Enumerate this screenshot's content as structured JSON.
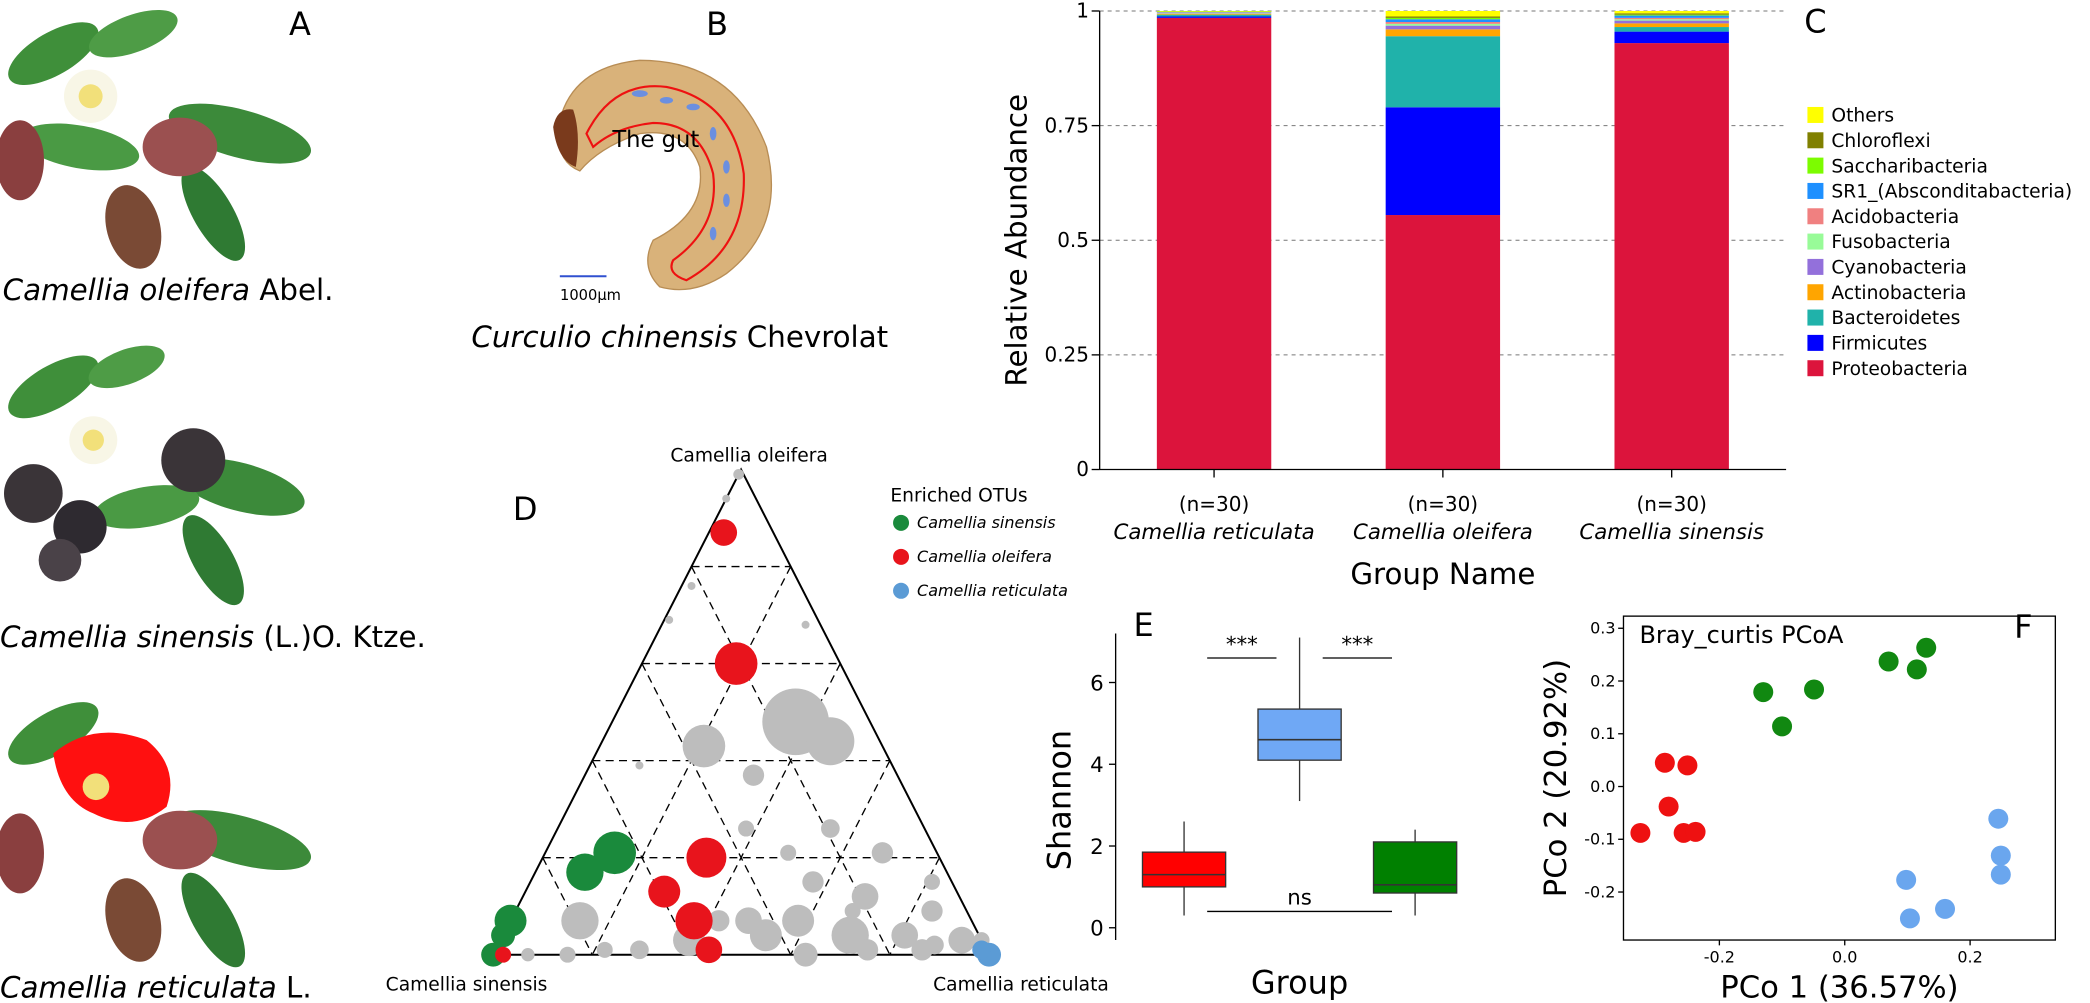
{
  "illustrations": {
    "label": "A",
    "captions": [
      {
        "species": "Camellia oleifera",
        "authority": "Abel."
      },
      {
        "species": "Camellia sinensis",
        "authority": "(L.)O. Ktze."
      },
      {
        "species": "Camellia reticulata",
        "authority": "L."
      }
    ],
    "insect": {
      "label": "B",
      "organ": "The gut",
      "scale": "1000μm",
      "species": "Curculio chinensis",
      "authority": "Chevrolat"
    }
  },
  "chart_data": [
    {
      "type": "bar",
      "stacked": true,
      "panel_label": "C",
      "y_label": "Relative Abundance",
      "x_label": "Group Name",
      "categories": [
        "Camellia reticulata",
        "Camellia oleifera",
        "Camellia sinensis"
      ],
      "category_notes": [
        "(n=30)",
        "(n=30)",
        "(n=30)"
      ],
      "ylim": [
        0,
        1
      ],
      "yticks": [
        0,
        0.25,
        0.5,
        0.75,
        1
      ],
      "grid": true,
      "series": [
        {
          "name": "Proteobacteria",
          "color": "#dc143c",
          "values": [
            0.985,
            0.555,
            0.93
          ]
        },
        {
          "name": "Firmicutes",
          "color": "#0000ff",
          "values": [
            0.003,
            0.235,
            0.025
          ]
        },
        {
          "name": "Bacteroidetes",
          "color": "#20b2aa",
          "values": [
            0.004,
            0.155,
            0.01
          ]
        },
        {
          "name": "Actinobacteria",
          "color": "#ffa500",
          "values": [
            0.002,
            0.015,
            0.008
          ]
        },
        {
          "name": "Cyanobacteria",
          "color": "#9370db",
          "values": [
            0.001,
            0.008,
            0.006
          ]
        },
        {
          "name": "Fusobacteria",
          "color": "#98fb98",
          "values": [
            0.001,
            0.004,
            0.003
          ]
        },
        {
          "name": "Acidobacteria",
          "color": "#f08080",
          "values": [
            0.001,
            0.004,
            0.003
          ]
        },
        {
          "name": "SR1_(Absconditabacteria)",
          "color": "#1e90ff",
          "values": [
            0.001,
            0.006,
            0.005
          ]
        },
        {
          "name": "Saccharibacteria",
          "color": "#7cfc00",
          "values": [
            0.001,
            0.003,
            0.002
          ]
        },
        {
          "name": "Chloroflexi",
          "color": "#808000",
          "values": [
            0,
            0.003,
            0.003
          ]
        },
        {
          "name": "Others",
          "color": "#ffff00",
          "values": [
            0.001,
            0.012,
            0.005
          ]
        }
      ]
    },
    {
      "type": "ternary",
      "panel_label": "D",
      "legend_title": "Enriched OTUs",
      "vertices": [
        "Camellia oleifera",
        "Camellia sinensis",
        "Camellia reticulata"
      ],
      "grid_ticks": [
        20,
        40,
        60,
        80
      ],
      "series": [
        {
          "color": "#bdbdbd",
          "values": [
            [
              48,
              15,
              37
            ],
            [
              44,
              10,
              46
            ],
            [
              43,
              36,
              21
            ],
            [
              37,
              29,
              34
            ],
            [
              7,
              79,
              14
            ],
            [
              3,
              59,
              38
            ],
            [
              7,
              35,
              58
            ],
            [
              4,
              26,
              70
            ],
            [
              4,
              15,
              81
            ],
            [
              3,
              4,
              93
            ],
            [
              9,
              7,
              84
            ],
            [
              12,
              19,
              69
            ],
            [
              4,
              43,
              53
            ],
            [
              15,
              28,
              57
            ],
            [
              7,
              45,
              48
            ],
            [
              21,
              11,
              68
            ],
            [
              15,
              4,
              81
            ],
            [
              3,
              0,
              97
            ],
            [
              26,
              19,
              55
            ],
            [
              26,
              36,
              38
            ],
            [
              0,
              85,
              15
            ],
            [
              1,
              77,
              22
            ],
            [
              1,
              70,
              29
            ],
            [
              0,
              37,
              63
            ],
            [
              1,
              13,
              86
            ],
            [
              1,
              24,
              75
            ],
            [
              76,
              22,
              2
            ],
            [
              69,
              30,
              1
            ],
            [
              39,
              51,
              10
            ],
            [
              68,
              3,
              29
            ],
            [
              99,
              1,
              0
            ],
            [
              94,
              6,
              0
            ],
            [
              21,
              63,
              16
            ],
            [
              21,
              30,
              49
            ],
            [
              2,
              10,
              88
            ],
            [
              7,
              51,
              42
            ],
            [
              0,
              93,
              7
            ],
            [
              9,
              23,
              68
            ]
          ],
          "sizes": [
            25,
            18,
            16,
            8,
            14,
            12,
            12,
            14,
            10,
            10,
            8,
            10,
            12,
            8,
            10,
            8,
            6,
            6,
            7,
            6,
            6,
            6,
            7,
            9,
            8,
            8,
            3,
            3,
            3,
            3,
            4,
            3,
            5,
            6,
            7,
            8,
            5,
            6
          ]
        },
        {
          "name": "Camellia sinensis",
          "color": "#1a8a3c",
          "values": [
            [
              21,
              65,
              14
            ],
            [
              17,
              73,
              10
            ],
            [
              7,
              93,
              0
            ],
            [
              4,
              96,
              0
            ],
            [
              0,
              100,
              0
            ]
          ],
          "sizes": [
            16,
            14,
            12,
            9,
            9
          ]
        },
        {
          "name": "Camellia oleifera",
          "color": "#e8141c",
          "values": [
            [
              87,
              10,
              3
            ],
            [
              60,
              21,
              19
            ],
            [
              20,
              47,
              33
            ],
            [
              13,
              59,
              28
            ],
            [
              7,
              56,
              37
            ],
            [
              1,
              56,
              43
            ],
            [
              0,
              98,
              2
            ]
          ],
          "sizes": [
            10,
            16,
            15,
            12,
            14,
            10,
            6
          ]
        },
        {
          "name": "Camellia reticulata",
          "color": "#5b9bd5",
          "values": [
            [
              0,
              0,
              100
            ],
            [
              1,
              1,
              98
            ]
          ],
          "sizes": [
            9,
            7
          ]
        }
      ]
    },
    {
      "type": "box",
      "panel_label": "E",
      "y_label": "Shannon",
      "x_label": "Group",
      "ylim": [
        -0.3,
        7.2
      ],
      "yticks": [
        0,
        2,
        4,
        6
      ],
      "boxes": [
        {
          "color": "#ff0000",
          "min": 0.3,
          "q1": 1.0,
          "median": 1.3,
          "q3": 1.85,
          "max": 2.6
        },
        {
          "color": "#6fa8f5",
          "min": 3.1,
          "q1": 4.1,
          "median": 4.6,
          "q3": 5.35,
          "max": 7.1
        },
        {
          "color": "#008000",
          "min": 0.3,
          "q1": 0.85,
          "median": 1.05,
          "q3": 2.1,
          "max": 2.4
        }
      ],
      "annotations": [
        {
          "text": "***",
          "from": 0,
          "to": 1,
          "y": 6.6
        },
        {
          "text": "***",
          "from": 1,
          "to": 2,
          "y": 6.6
        },
        {
          "text": "ns",
          "from": 0,
          "to": 2,
          "y": 0.4
        }
      ]
    },
    {
      "type": "scatter",
      "panel_label": "F",
      "title": "Bray_curtis PCoA",
      "x_label": "PCo 1 (36.57%)",
      "y_label": "PCo 2 (20.92%)",
      "xlim": [
        -0.353,
        0.336
      ],
      "ylim": [
        -0.291,
        0.323
      ],
      "xticks": [
        -0.2,
        {
          "value": 0,
          "label": "0.0"
        },
        0.2
      ],
      "yticks": [
        -0.2,
        -0.1,
        {
          "value": 0,
          "label": "0.0"
        },
        0.1,
        0.2,
        0.3
      ],
      "series": [
        {
          "color": "#ee1111",
          "x": [
            -0.326,
            -0.287,
            -0.251,
            -0.281,
            -0.257,
            -0.238
          ],
          "y": [
            -0.088,
            0.045,
            0.04,
            -0.038,
            -0.088,
            -0.086
          ]
        },
        {
          "color": "#118811",
          "x": [
            -0.13,
            -0.1,
            -0.049,
            0.07,
            0.115,
            0.13
          ],
          "y": [
            0.179,
            0.114,
            0.184,
            0.237,
            0.222,
            0.263
          ]
        },
        {
          "color": "#6aa6ee",
          "x": [
            0.245,
            0.249,
            0.249,
            0.098,
            0.104,
            0.16
          ],
          "y": [
            -0.061,
            -0.131,
            -0.167,
            -0.177,
            -0.25,
            -0.232
          ]
        }
      ]
    }
  ]
}
